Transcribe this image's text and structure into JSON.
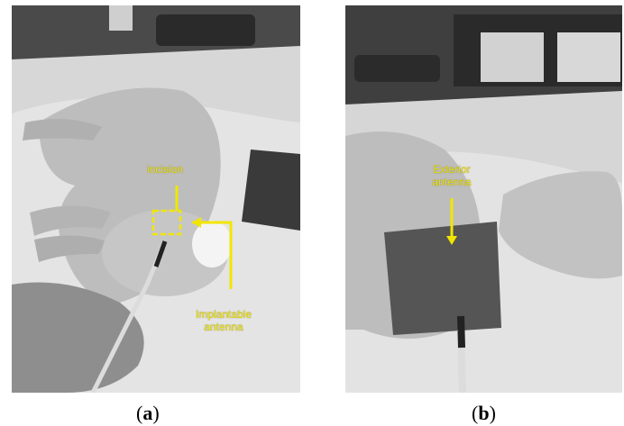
{
  "panel_a": {
    "caption_open": "(",
    "caption_letter": "a",
    "caption_close": ")",
    "labels": {
      "incision": "incision",
      "implantable_line1": "Implantable",
      "implantable_line2": "antenna"
    }
  },
  "panel_b": {
    "caption_open": "(",
    "caption_letter": "b",
    "caption_close": ")",
    "labels": {
      "exterior_line1": "Exterior",
      "exterior_line2": "antenna"
    }
  },
  "colors": {
    "annotation": "#f2e600"
  }
}
